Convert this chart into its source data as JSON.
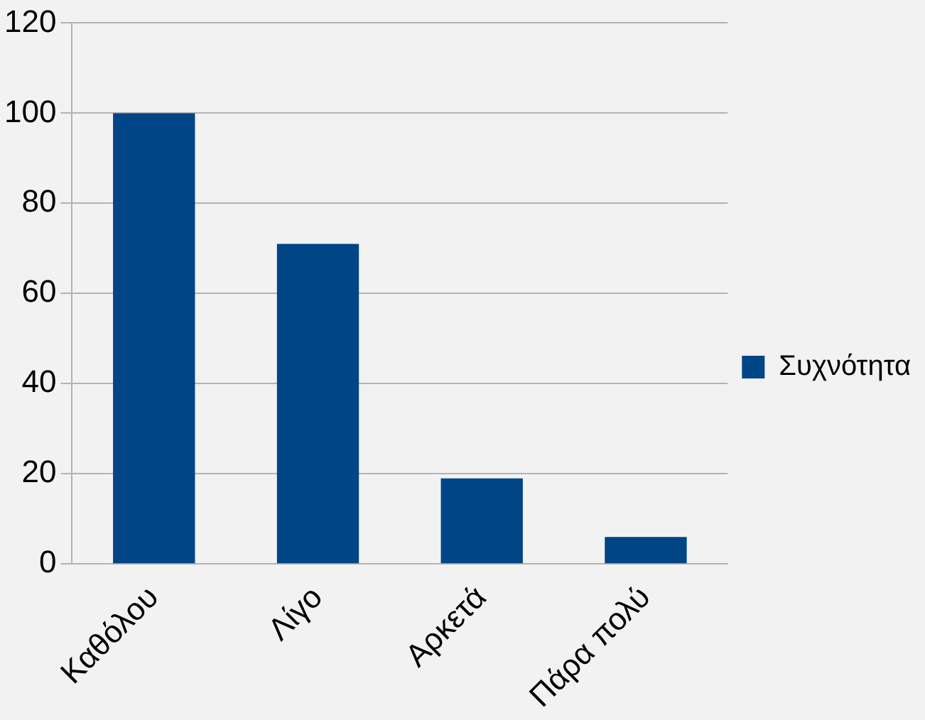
{
  "chart_data": {
    "type": "bar",
    "categories": [
      "Καθόλου",
      "Λίγο",
      "Αρκετά",
      "Πάρα πολύ"
    ],
    "series": [
      {
        "name": "Συχνότητα",
        "color": "#004586",
        "values": [
          100,
          71,
          19,
          6
        ]
      }
    ],
    "ylim": [
      0,
      120
    ],
    "yticks": [
      0,
      20,
      40,
      60,
      80,
      100,
      120
    ],
    "grid": "y",
    "legend": "right"
  }
}
